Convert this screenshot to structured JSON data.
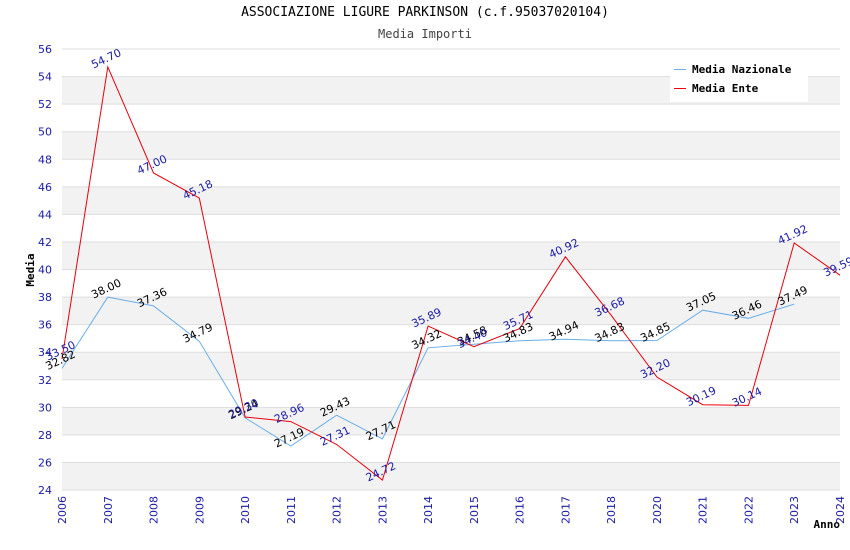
{
  "chart_data": {
    "type": "line",
    "title": "ASSOCIAZIONE LIGURE PARKINSON (c.f.95037020104)",
    "subtitle": "Media Importi",
    "xlabel": "Anno",
    "ylabel": "Media",
    "ylim": [
      24,
      56
    ],
    "y_ticks": [
      "24",
      "26",
      "28",
      "30",
      "32",
      "34",
      "36",
      "38",
      "40",
      "42",
      "44",
      "46",
      "48",
      "50",
      "52",
      "54",
      "56"
    ],
    "categories": [
      "2006",
      "2007",
      "2008",
      "2009",
      "2010",
      "2011",
      "2012",
      "2013",
      "2014",
      "2015",
      "2016",
      "2017",
      "2018",
      "2020",
      "2021",
      "2022",
      "2023",
      "2024"
    ],
    "series": [
      {
        "name": "Media Nazionale",
        "color": "#6aaee8",
        "values": [
          32.82,
          38.0,
          37.36,
          34.79,
          29.24,
          27.19,
          29.43,
          27.71,
          34.32,
          34.58,
          34.83,
          34.94,
          34.83,
          34.85,
          37.05,
          36.46,
          37.49,
          null
        ],
        "labels": [
          "32.82",
          "38.00",
          "37.36",
          "34.79",
          "29.24",
          "27.19",
          "29.43",
          "27.71",
          "34.32",
          "34.58",
          "34.83",
          "34.94",
          "34.83",
          "34.85",
          "37.05",
          "36.46",
          "37.49",
          ""
        ]
      },
      {
        "name": "Media Ente",
        "color": "#e8000b",
        "values": [
          33.5,
          54.7,
          47.0,
          45.18,
          29.3,
          28.96,
          27.31,
          24.72,
          35.89,
          34.4,
          35.71,
          40.92,
          36.68,
          32.2,
          30.19,
          30.14,
          41.92,
          39.59
        ],
        "labels": [
          "33.50",
          "54.70",
          "47.00",
          "45.18",
          "29.30",
          "28.96",
          "27.31",
          "24.72",
          "35.89",
          "34.40",
          "35.71",
          "40.92",
          "36.68",
          "32.20",
          "30.19",
          "30.14",
          "41.92",
          "39.59"
        ]
      }
    ],
    "grid": true,
    "legend_position": "top-right"
  }
}
